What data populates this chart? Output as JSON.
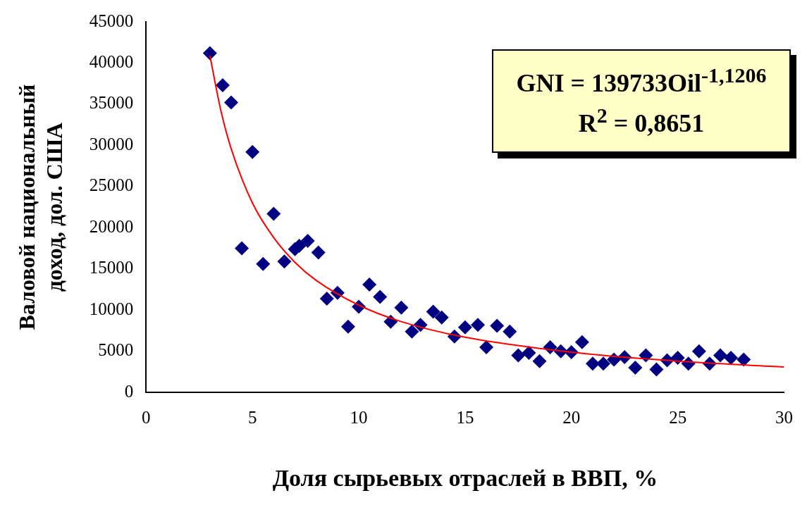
{
  "chart_data": {
    "type": "scatter",
    "xlabel": "Доля сырьевых отраслей в ВВП, %",
    "ylabel": "Валовой национальный доход, дол. США",
    "xlim": [
      0,
      30
    ],
    "xticks": [
      0,
      5,
      10,
      15,
      20,
      25,
      30
    ],
    "ylim": [
      0,
      45000
    ],
    "yticks": [
      0,
      5000,
      10000,
      15000,
      20000,
      25000,
      30000,
      35000,
      40000,
      45000
    ],
    "grid": false,
    "legend": false,
    "marker": "diamond",
    "annotations": [
      "GNI = 139733Oil$^{-1,1206}$",
      "R$^{2}$ = 0,8651"
    ],
    "series": [
      {
        "color": "#000080",
        "x": [
          3.0,
          3.6,
          4.0,
          5.0,
          6.0,
          4.5,
          5.5,
          6.5,
          7.0,
          7.2,
          7.6,
          8.1,
          8.5,
          9.0,
          9.5,
          10.0,
          10.5,
          11.0,
          11.5,
          12.0,
          12.5,
          12.9,
          13.5,
          13.9,
          14.5,
          15.0,
          15.6,
          16.0,
          16.5,
          17.1,
          17.5,
          18.0,
          18.5,
          19.0,
          19.5,
          20.0,
          20.5,
          21.0,
          21.5,
          22.0,
          22.5,
          23.0,
          23.5,
          24.0,
          24.5,
          25.0,
          25.5,
          26.0,
          26.5,
          27.0,
          27.5,
          28.1
        ],
        "values": [
          41200,
          37300,
          35200,
          29200,
          21700,
          17500,
          15600,
          15900,
          17400,
          17800,
          18400,
          17000,
          11400,
          12100,
          8000,
          10400,
          13100,
          11600,
          8600,
          10300,
          7400,
          8200,
          9800,
          9100,
          6800,
          7900,
          8200,
          5500,
          8100,
          7400,
          4500,
          4800,
          3800,
          5500,
          5000,
          4900,
          6100,
          3500,
          3500,
          4000,
          4300,
          3000,
          4500,
          2800,
          3900,
          4200,
          3500,
          5000,
          3500,
          4500,
          4200,
          4000
        ]
      },
      {
        "type": "line",
        "color": "#ff0000",
        "marker": "none",
        "x": [
          3,
          3.5,
          4,
          5,
          6,
          7,
          8,
          10,
          12,
          15,
          20,
          25,
          30
        ],
        "values": [
          40900,
          34400,
          29600,
          23000,
          18800,
          15800,
          13600,
          10600,
          8600,
          6700,
          4900,
          3800,
          3100
        ]
      }
    ]
  }
}
